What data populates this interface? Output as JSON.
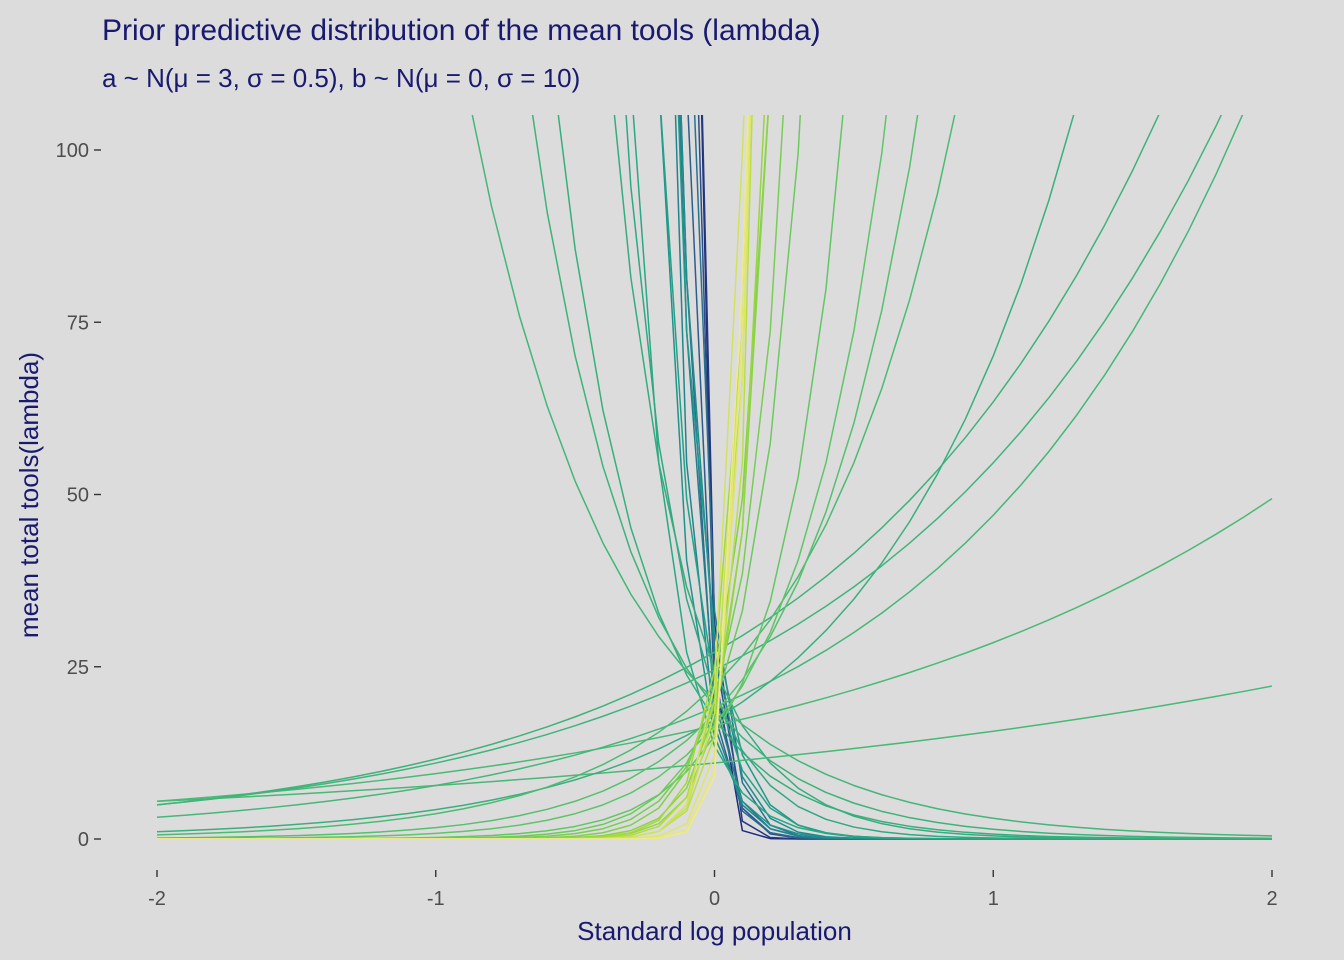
{
  "chart_data": {
    "type": "line",
    "title": "Prior predictive distribution of the mean tools (lambda)",
    "subtitle": "a ~ N(μ = 3, σ = 0.5), b ~ N(μ = 0, σ = 10)",
    "xlabel": "Standard log population",
    "ylabel": "mean total tools(lambda)",
    "xlim": [
      -2,
      2
    ],
    "ylim": [
      -4,
      105
    ],
    "x_ticks": [
      -2,
      -1,
      0,
      1,
      2
    ],
    "x_tick_labels": [
      "-2",
      "-1",
      "0",
      "1",
      "2"
    ],
    "y_ticks": [
      0,
      25,
      50,
      75,
      100
    ],
    "y_tick_labels": [
      "0",
      "25",
      "50",
      "75",
      "100"
    ],
    "x_grid_step": 0.1,
    "grid": false,
    "legend": "none",
    "color_scale": "viridis (dark blue = steep negative slope, yellow = steep positive slope)",
    "series_note": "lambda = exp(a + b * x)",
    "series": [
      {
        "a": 3.2,
        "b": -30,
        "color": "#1d2a78"
      },
      {
        "a": 3.45,
        "b": -25,
        "color": "#26397f"
      },
      {
        "a": 3.3,
        "b": -18,
        "color": "#2c4e88"
      },
      {
        "a": 3.1,
        "b": -16,
        "color": "#2e5c8c"
      },
      {
        "a": 2.9,
        "b": -15,
        "color": "#2b6a8d"
      },
      {
        "a": 3.5,
        "b": -14,
        "color": "#29728e"
      },
      {
        "a": 3.0,
        "b": -13,
        "color": "#277a8e"
      },
      {
        "a": 2.8,
        "b": -12,
        "color": "#24838e"
      },
      {
        "a": 3.3,
        "b": -11,
        "color": "#218b8d"
      },
      {
        "a": 2.7,
        "b": -10,
        "color": "#1f928c"
      },
      {
        "a": 3.4,
        "b": -9,
        "color": "#1f998a"
      },
      {
        "a": 3.1,
        "b": -8,
        "color": "#22a187"
      },
      {
        "a": 2.6,
        "b": -7,
        "color": "#2aa883"
      },
      {
        "a": 3.05,
        "b": -5,
        "color": "#2fa882"
      },
      {
        "a": 3.2,
        "b": -4,
        "color": "#35ac7f"
      },
      {
        "a": 2.85,
        "b": -3.2,
        "color": "#35b07c"
      },
      {
        "a": 2.95,
        "b": -2.6,
        "color": "#3db37a"
      },
      {
        "a": 3.0,
        "b": -1.9,
        "color": "#43b678"
      },
      {
        "a": 2.4,
        "b": 0.35,
        "color": "#48b876"
      },
      {
        "a": 2.8,
        "b": 0.55,
        "color": "#4aba74"
      },
      {
        "a": 2.95,
        "b": 0.9,
        "color": "#45b779"
      },
      {
        "a": 3.3,
        "b": 0.85,
        "color": "#3fb27c"
      },
      {
        "a": 2.85,
        "b": 1.4,
        "color": "#3aaf7e"
      },
      {
        "a": 3.2,
        "b": 0.8,
        "color": "#40b47b"
      },
      {
        "a": 3.1,
        "b": 1.8,
        "color": "#4cbb72"
      },
      {
        "a": 2.9,
        "b": 2.4,
        "color": "#55c06d"
      },
      {
        "a": 2.8,
        "b": 3.0,
        "color": "#5ec568"
      },
      {
        "a": 2.7,
        "b": 4.2,
        "color": "#63c663"
      },
      {
        "a": 2.95,
        "b": 5.5,
        "color": "#6cca5d"
      },
      {
        "a": 3.0,
        "b": 6.5,
        "color": "#77cd55"
      },
      {
        "a": 3.1,
        "b": 8,
        "color": "#81d04d"
      },
      {
        "a": 2.9,
        "b": 9,
        "color": "#8cd346"
      },
      {
        "a": 2.8,
        "b": 10,
        "color": "#98d640"
      },
      {
        "a": 3.2,
        "b": 11,
        "color": "#a3d93b"
      },
      {
        "a": 3.0,
        "b": 12,
        "color": "#b0dc3e"
      },
      {
        "a": 2.7,
        "b": 13,
        "color": "#bade49"
      },
      {
        "a": 2.9,
        "b": 14,
        "color": "#c6e053"
      },
      {
        "a": 3.1,
        "b": 15,
        "color": "#d2e25f"
      },
      {
        "a": 2.5,
        "b": 17,
        "color": "#dde56b"
      },
      {
        "a": 2.3,
        "b": 20,
        "color": "#e6e77a"
      },
      {
        "a": 2.2,
        "b": 22,
        "color": "#ede98d"
      }
    ]
  }
}
